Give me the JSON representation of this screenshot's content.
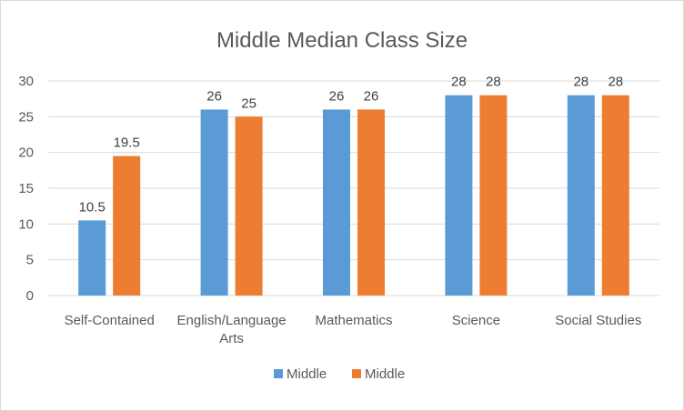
{
  "chart_data": {
    "type": "bar",
    "title": "Middle Median Class Size",
    "categories": [
      "Self-Contained",
      "English/Language Arts",
      "Mathematics",
      "Science",
      "Social Studies"
    ],
    "series": [
      {
        "name": "Middle",
        "color": "#5b9bd5",
        "values": [
          10.5,
          26,
          26,
          28,
          28
        ],
        "labels": [
          "10.5",
          "26",
          "26",
          "28",
          "28"
        ]
      },
      {
        "name": "Middle",
        "color": "#ed7d31",
        "values": [
          19.5,
          25,
          26,
          28,
          28
        ],
        "labels": [
          "19.5",
          "25",
          "26",
          "28",
          "28"
        ]
      }
    ],
    "ylim": [
      0,
      30
    ],
    "yticks": [
      "0",
      "5",
      "10",
      "15",
      "20",
      "25",
      "30"
    ],
    "grid": true,
    "legend": "bottom"
  }
}
